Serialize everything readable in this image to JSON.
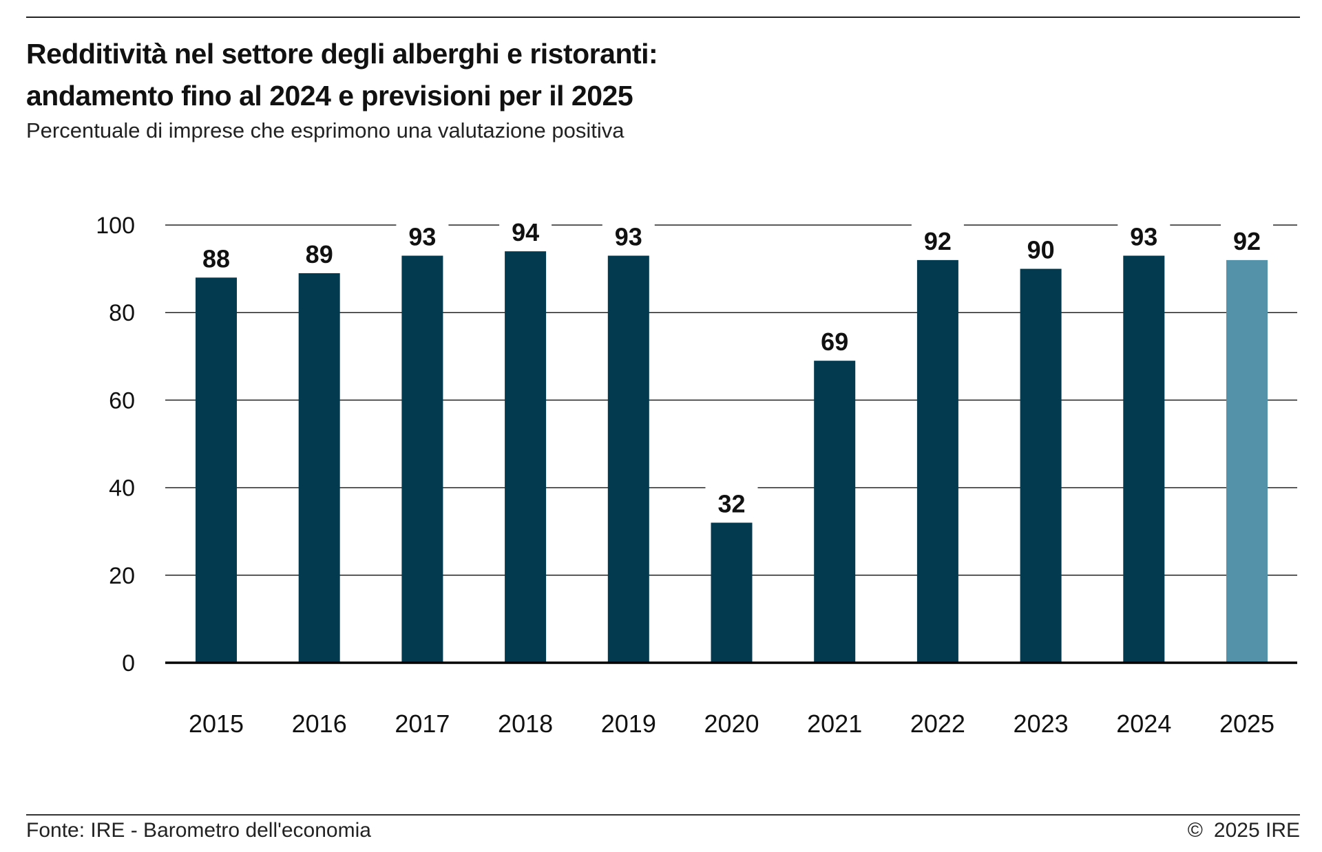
{
  "header": {
    "title_line1": "Redditività nel settore degli alberghi e ristoranti:",
    "title_line2": "andamento fino al 2024 e previsioni per il 2025",
    "subtitle": "Percentuale di imprese che esprimono una valutazione positiva"
  },
  "footer": {
    "source": "Fonte: IRE - Barometro dell'economia",
    "copyright_symbol": "©",
    "copyright_text": "2025 IRE"
  },
  "colors": {
    "actual": "#033a4f",
    "forecast": "#5492a9",
    "grid": "#222222",
    "text": "#111111"
  },
  "chart_data": {
    "type": "bar",
    "title": "Redditività nel settore degli alberghi e ristoranti: andamento fino al 2024 e previsioni per il 2025",
    "subtitle": "Percentuale di imprese che esprimono una valutazione positiva",
    "categories": [
      "2015",
      "2016",
      "2017",
      "2018",
      "2019",
      "2020",
      "2021",
      "2022",
      "2023",
      "2024",
      "2025"
    ],
    "values": [
      88,
      89,
      93,
      94,
      93,
      32,
      69,
      92,
      90,
      93,
      92
    ],
    "data_labels": [
      "88",
      "89",
      "93",
      "94",
      "93",
      "32",
      "69",
      "92",
      "90",
      "93",
      "92"
    ],
    "forecast_categories": [
      "2025"
    ],
    "ylim": [
      0,
      100
    ],
    "yticks": [
      0,
      20,
      40,
      60,
      80,
      100
    ],
    "ytick_labels": [
      "0",
      "20",
      "40",
      "60",
      "80",
      "100"
    ],
    "xlabel": "",
    "ylabel": "",
    "grid": true,
    "legend": "none"
  }
}
